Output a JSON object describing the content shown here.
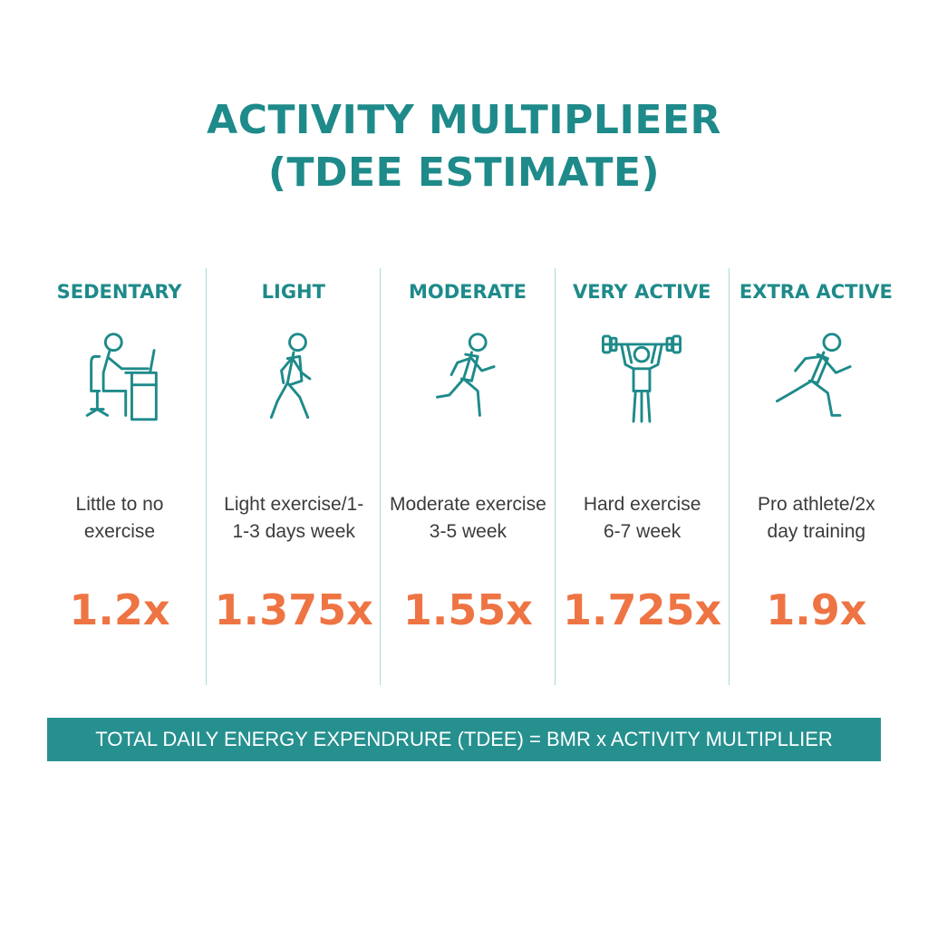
{
  "title": {
    "line1": "ACTIVITY MULTIPLIEER",
    "line2": "(TDEE ESTIMATE)"
  },
  "colors": {
    "teal": "#1e8a8a",
    "orange": "#ee7443",
    "banner": "#26908f"
  },
  "levels": [
    {
      "label": "SEDENTARY",
      "icon": "desk-worker-icon",
      "desc_line1": "Little to no",
      "desc_line2": "exercise",
      "multiplier": "1.2x"
    },
    {
      "label": "LIGHT",
      "icon": "walking-person-icon",
      "desc_line1": "Light exercise/1-",
      "desc_line2": "1-3 days week",
      "multiplier": "1.375x"
    },
    {
      "label": "MODERATE",
      "icon": "jogging-person-icon",
      "desc_line1": "Moderate exercise",
      "desc_line2": "3-5 week",
      "multiplier": "1.55x"
    },
    {
      "label": "VERY ACTIVE",
      "icon": "weightlifter-icon",
      "desc_line1": "Hard exercise",
      "desc_line2": "6-7 week",
      "multiplier": "1.725x"
    },
    {
      "label": "EXTRA ACTIVE",
      "icon": "sprinting-person-icon",
      "desc_line1": "Pro athlete/2x",
      "desc_line2": "day training",
      "multiplier": "1.9x"
    }
  ],
  "banner": {
    "text": "TOTAL DAILY ENERGY EXPENDRURE (TDEE) = BMR x ACTIVITY MULTIPLLIER"
  }
}
